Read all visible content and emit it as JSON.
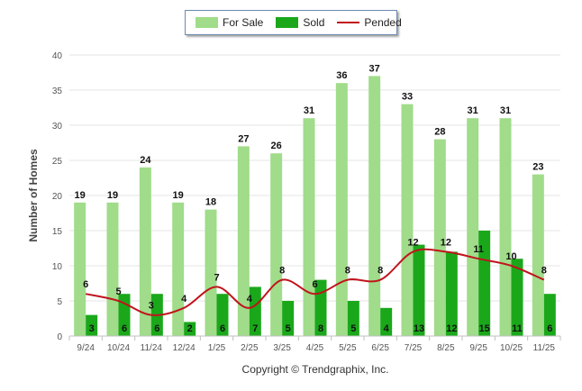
{
  "chart_data": {
    "type": "bar",
    "ylabel": "Number of Homes",
    "ylim": [
      0,
      40
    ],
    "yticks": [
      "0",
      "5",
      "10",
      "15",
      "20",
      "25",
      "30",
      "35",
      "40"
    ],
    "categories": [
      "9/24",
      "10/24",
      "11/24",
      "12/24",
      "1/25",
      "2/25",
      "3/25",
      "4/25",
      "5/25",
      "6/25",
      "7/25",
      "8/25",
      "9/25",
      "10/25",
      "11/25"
    ],
    "series": [
      {
        "name": "For Sale",
        "type": "bar",
        "color": "#a0dc8a",
        "values": [
          19,
          19,
          24,
          19,
          18,
          27,
          26,
          31,
          36,
          37,
          33,
          28,
          31,
          31,
          23
        ]
      },
      {
        "name": "Sold",
        "type": "bar",
        "color": "#1aa81a",
        "values": [
          3,
          6,
          6,
          2,
          6,
          7,
          5,
          8,
          5,
          4,
          13,
          12,
          15,
          11,
          6
        ]
      },
      {
        "name": "Pended",
        "type": "line",
        "color": "#c0141c",
        "values": [
          6,
          5,
          3,
          4,
          7,
          4,
          8,
          6,
          8,
          8,
          12,
          12,
          11,
          10,
          8
        ]
      }
    ],
    "grid": true,
    "legend_position": "top-center"
  },
  "legend": {
    "for_sale": "For Sale",
    "sold": "Sold",
    "pended": "Pended"
  },
  "colors": {
    "for_sale": "#a0dc8a",
    "sold": "#1aa81a",
    "pended": "#c0141c"
  },
  "footer": {
    "copyright": "Copyright © Trendgraphix, Inc."
  }
}
